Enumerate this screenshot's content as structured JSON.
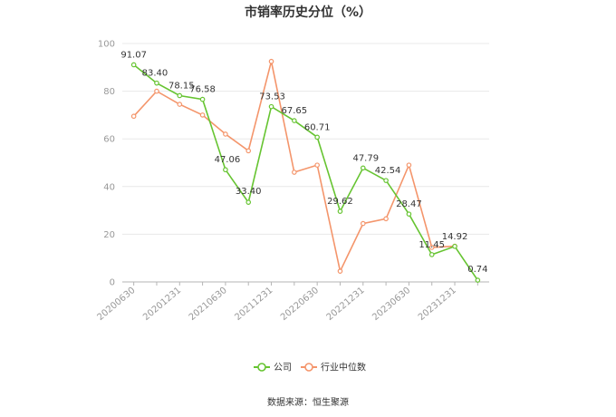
{
  "chart_data": {
    "type": "line",
    "title": "市销率历史分位（%）",
    "xlabel": "",
    "ylabel": "",
    "ylim": [
      0,
      100
    ],
    "yticks": [
      0,
      20,
      40,
      60,
      80,
      100
    ],
    "categories": [
      "20200630",
      "",
      "20201231",
      "",
      "20210630",
      "",
      "20211231",
      "",
      "20220630",
      "",
      "20221231",
      "",
      "20230630",
      "",
      "20231231",
      ""
    ],
    "x_tick_labels": [
      "20200630",
      "20201231",
      "20210630",
      "20211231",
      "20220630",
      "20221231",
      "20230630",
      "20231231"
    ],
    "series": [
      {
        "name": "公司",
        "color": "#66c431",
        "values": [
          91.07,
          83.4,
          78.15,
          76.58,
          47.06,
          33.4,
          73.53,
          67.65,
          60.71,
          29.62,
          47.79,
          42.54,
          28.47,
          11.45,
          14.92,
          0.74
        ],
        "labels": [
          "91.07",
          "83.40",
          "78.15",
          "76.58",
          "47.06",
          "33.40",
          "73.53",
          "67.65",
          "60.71",
          "29.62",
          "47.79",
          "42.54",
          "28.47",
          "11.45",
          "14.92",
          "0.74"
        ]
      },
      {
        "name": "行业中位数",
        "color": "#f4956b",
        "values": [
          69.5,
          80,
          74.5,
          70,
          62,
          55,
          92.5,
          46,
          49,
          4.5,
          24.5,
          26.5,
          49,
          14.5,
          15,
          null
        ]
      }
    ],
    "legend_position": "bottom",
    "grid": true
  },
  "source_text": "数据来源：恒生聚源"
}
